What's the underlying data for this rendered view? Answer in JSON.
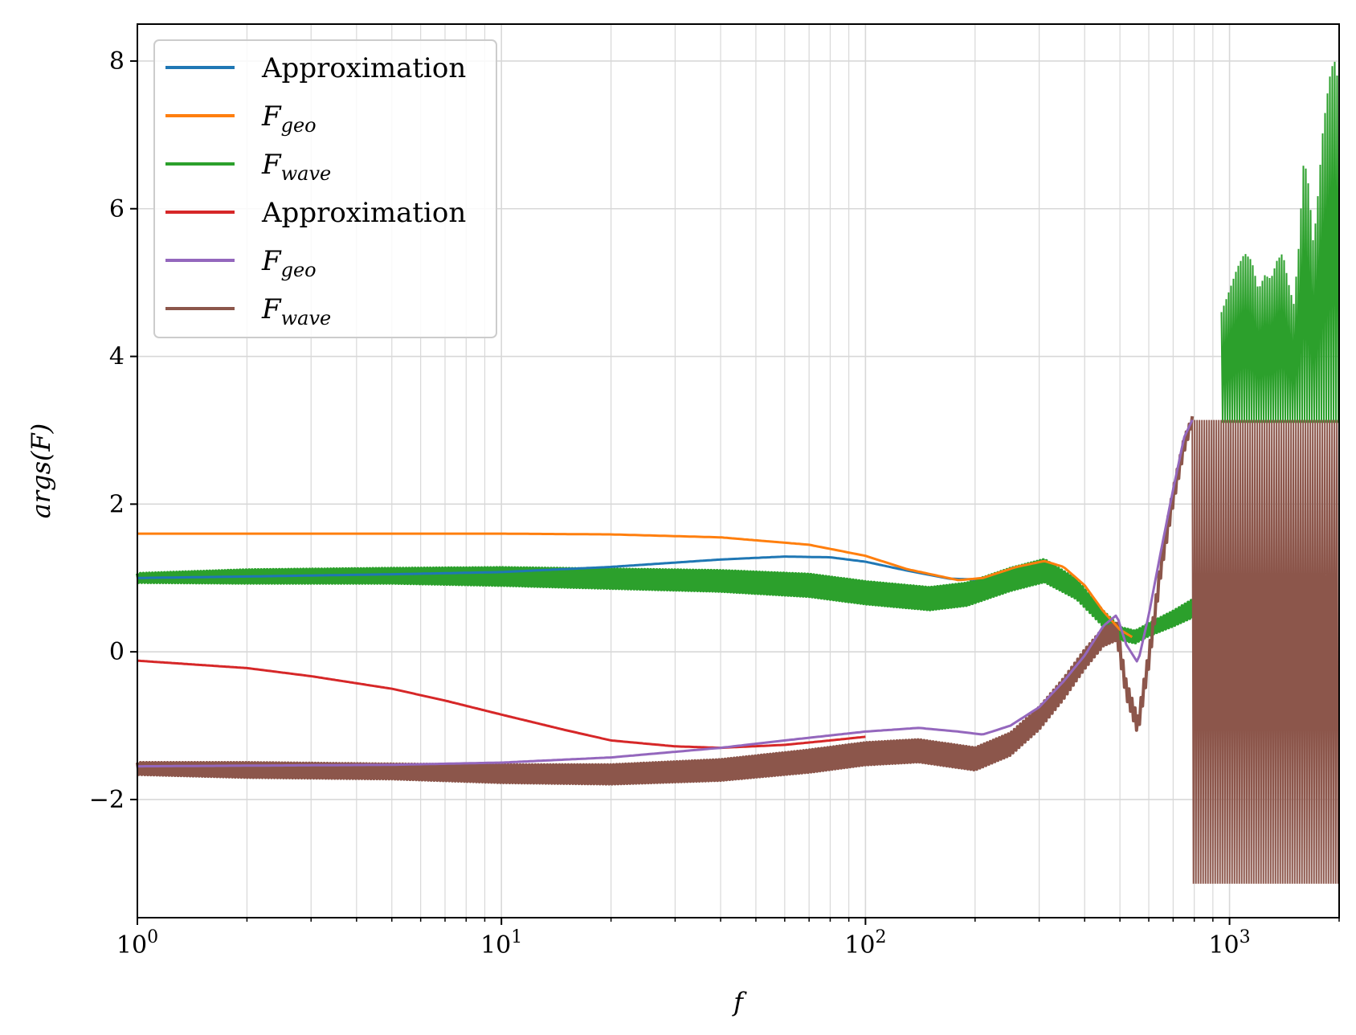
{
  "chart_data": {
    "type": "line",
    "xlabel": "f",
    "ylabel": "args(F)",
    "xscale": "log",
    "xlim": [
      1,
      2000
    ],
    "ylim": [
      -3.6,
      8.5
    ],
    "grid": true,
    "legend_placement": "upper-left",
    "x_ticks": [
      {
        "value": 1,
        "base": "10",
        "exp": "0"
      },
      {
        "value": 10,
        "base": "10",
        "exp": "1"
      },
      {
        "value": 100,
        "base": "10",
        "exp": "2"
      },
      {
        "value": 1000,
        "base": "10",
        "exp": "3"
      }
    ],
    "y_ticks": [
      {
        "value": -2,
        "label": "−2"
      },
      {
        "value": 0,
        "label": "0"
      },
      {
        "value": 2,
        "label": "2"
      },
      {
        "value": 4,
        "label": "4"
      },
      {
        "value": 6,
        "label": "6"
      },
      {
        "value": 8,
        "label": "8"
      }
    ],
    "series": [
      {
        "name": "Approximation",
        "color": "#1f77b4",
        "kind": "smooth",
        "width": 3,
        "x": [
          1,
          2,
          5,
          10,
          20,
          40,
          60,
          80,
          100,
          130,
          170,
          200
        ],
        "y": [
          1.0,
          1.02,
          1.05,
          1.08,
          1.15,
          1.25,
          1.29,
          1.28,
          1.22,
          1.1,
          0.99,
          0.98
        ]
      },
      {
        "name": "F",
        "sub": "geo",
        "color": "#ff7f0e",
        "kind": "smooth",
        "width": 3,
        "x": [
          1,
          5,
          10,
          20,
          40,
          70,
          100,
          130,
          180,
          210,
          260,
          310,
          350,
          400,
          450,
          500,
          540
        ],
        "y": [
          1.6,
          1.6,
          1.6,
          1.59,
          1.55,
          1.45,
          1.3,
          1.12,
          0.97,
          1.0,
          1.15,
          1.23,
          1.15,
          0.9,
          0.55,
          0.3,
          0.2
        ]
      },
      {
        "name": "F",
        "sub": "wave",
        "color": "#2ca02c",
        "kind": "band",
        "x": [
          1,
          2,
          5,
          10,
          20,
          40,
          70,
          100,
          150,
          190,
          250,
          310,
          380,
          450,
          500,
          550,
          600,
          700,
          800
        ],
        "y": [
          1.0,
          1.02,
          1.03,
          1.02,
          0.99,
          0.96,
          0.9,
          0.8,
          0.72,
          0.78,
          0.98,
          1.1,
          0.85,
          0.45,
          0.25,
          0.2,
          0.3,
          0.45,
          0.6
        ],
        "band_width": [
          0.06,
          0.09,
          0.1,
          0.12,
          0.13,
          0.14,
          0.15,
          0.15,
          0.15,
          0.15,
          0.15,
          0.15,
          0.13,
          0.1,
          0.08,
          0.08,
          0.08,
          0.1,
          0.12
        ],
        "tail_x_start": 950,
        "tail_x_end": 2000,
        "tail_min": 3.1,
        "tail_env_x": [
          950,
          1000,
          1050,
          1100,
          1150,
          1200,
          1250,
          1300,
          1350,
          1400,
          1450,
          1500,
          1550,
          1600,
          1650,
          1700,
          1750,
          1800,
          1850,
          1900,
          1950,
          2000
        ],
        "tail_env_max": [
          4.6,
          4.9,
          5.2,
          5.4,
          5.3,
          4.9,
          5.1,
          5.05,
          5.3,
          5.4,
          5.0,
          4.7,
          5.5,
          6.7,
          6.3,
          5.5,
          6.2,
          7.0,
          7.5,
          7.9,
          8.0,
          7.6
        ]
      },
      {
        "name": "Approximation",
        "color": "#d62728",
        "kind": "smooth",
        "width": 3,
        "x": [
          1,
          2,
          3,
          5,
          7,
          10,
          15,
          20,
          30,
          40,
          60,
          80,
          100
        ],
        "y": [
          -0.12,
          -0.22,
          -0.33,
          -0.5,
          -0.66,
          -0.85,
          -1.06,
          -1.2,
          -1.28,
          -1.3,
          -1.26,
          -1.2,
          -1.15
        ]
      },
      {
        "name": "F",
        "sub": "geo",
        "color": "#9467bd",
        "kind": "smooth",
        "width": 3,
        "x": [
          1,
          5,
          10,
          20,
          40,
          60,
          100,
          140,
          180,
          210,
          250,
          300,
          350,
          400,
          450,
          490,
          520,
          560,
          600,
          650,
          700,
          750,
          790
        ],
        "y": [
          -1.55,
          -1.53,
          -1.5,
          -1.43,
          -1.3,
          -1.2,
          -1.08,
          -1.03,
          -1.08,
          -1.12,
          -1.0,
          -0.75,
          -0.4,
          -0.05,
          0.35,
          0.5,
          0.1,
          -0.15,
          0.5,
          1.4,
          2.2,
          2.9,
          3.14
        ]
      },
      {
        "name": "F",
        "sub": "wave",
        "color": "#8c564b",
        "kind": "band",
        "x": [
          1,
          2,
          5,
          10,
          20,
          40,
          70,
          100,
          140,
          200,
          250,
          300,
          350,
          400,
          450,
          490,
          520,
          560,
          600,
          650,
          700,
          750,
          790
        ],
        "y": [
          -1.58,
          -1.6,
          -1.62,
          -1.65,
          -1.66,
          -1.6,
          -1.48,
          -1.38,
          -1.34,
          -1.45,
          -1.25,
          -0.9,
          -0.5,
          -0.1,
          0.2,
          0.28,
          -0.5,
          -1.0,
          -0.1,
          1.2,
          2.1,
          2.8,
          3.14
        ],
        "band_width": [
          0.08,
          0.1,
          0.1,
          0.12,
          0.13,
          0.14,
          0.15,
          0.15,
          0.15,
          0.15,
          0.15,
          0.15,
          0.14,
          0.13,
          0.12,
          0.12,
          0.12,
          0.12,
          0.12,
          0.12,
          0.12,
          0.1,
          0.05
        ],
        "tail_x_start": 790,
        "tail_x_end": 2000,
        "tail_min": -3.14,
        "tail_max": 3.14
      }
    ]
  }
}
